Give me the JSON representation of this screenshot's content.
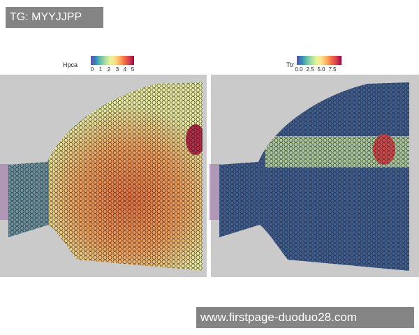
{
  "watermarks": {
    "top_left": "TG: MYYJJPP",
    "bottom_right": "www.firstpage-duoduo28.com"
  },
  "chart_data": [
    {
      "type": "heatmap",
      "subtype": "spatial feature plot",
      "legend": {
        "title": "Hpca",
        "ticks": [
          "0",
          "1",
          "2",
          "3",
          "4",
          "5"
        ],
        "range": [
          0,
          5.3
        ]
      },
      "colormap": "Spectral (reversed)",
      "note_high": "expression high in central-right region"
    },
    {
      "type": "heatmap",
      "subtype": "spatial feature plot",
      "legend": {
        "title": "Ttr",
        "ticks": [
          "0.0",
          "2.5",
          "5.0",
          "7.5"
        ],
        "range": [
          0,
          9
        ]
      },
      "colormap": "Spectral (reversed)"
    }
  ],
  "colors": {
    "background": "#c9cac9",
    "low": "#3d5a9a",
    "high": "#9e0142"
  }
}
